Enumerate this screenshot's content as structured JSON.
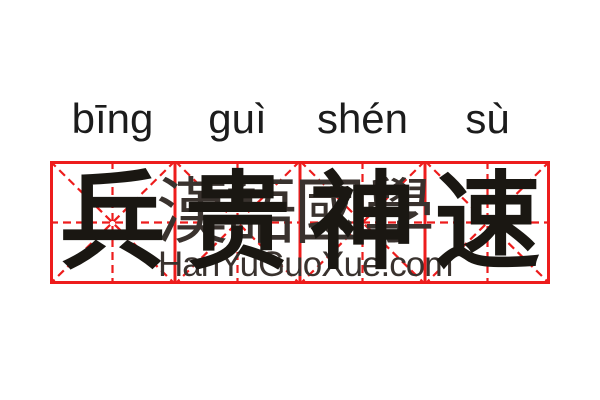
{
  "card": {
    "pinyin_syllables": [
      "bīng",
      "guì",
      "shén",
      "sù"
    ],
    "characters": [
      "兵",
      "贵",
      "神",
      "速"
    ]
  },
  "watermark": {
    "hanzi": "漢語國學",
    "domain": "HanYuGuoXue.com"
  },
  "grid": {
    "cells": 4,
    "style": "mi-zi-ge"
  },
  "colors": {
    "background": "#ffffff",
    "grid_red": "#ed1c1c",
    "ink": "#1a1712",
    "pinyin": "#1c1c1c",
    "watermark": "#39322e"
  }
}
